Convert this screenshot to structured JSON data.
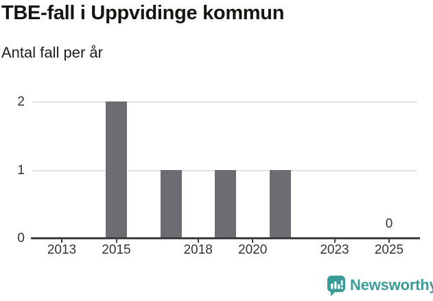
{
  "header": {
    "title": "TBE-fall i Uppvidinge kommun",
    "subtitle": "Antal fall per år"
  },
  "chart_data": {
    "type": "bar",
    "title": "TBE-fall i Uppvidinge kommun",
    "subtitle": "Antal fall per år",
    "categories": [
      2013,
      2014,
      2015,
      2016,
      2017,
      2018,
      2019,
      2020,
      2021,
      2022,
      2023,
      2024,
      2025
    ],
    "values": [
      0,
      0,
      2,
      0,
      1,
      0,
      1,
      0,
      1,
      0,
      0,
      0,
      0
    ],
    "x_tick_labels": [
      "2013",
      "2015",
      "2018",
      "2020",
      "2023",
      "2025"
    ],
    "y_ticks": [
      "0",
      "1",
      "2"
    ],
    "ylim": [
      0,
      2
    ],
    "xlabel": "",
    "ylabel": "",
    "grid": "horizontal",
    "legend": "none",
    "bar_color": "#6c6c72",
    "axis_color": "#3f3f3f",
    "gridline_color": "#e2e2e2",
    "annotations": [
      {
        "category": 2025,
        "text": "0"
      }
    ]
  },
  "footer": {
    "brand": "Newsworthy",
    "accent_color": "#3a9c98",
    "logo_icon": "newsworthy-speech-bubble-bar-chart-icon"
  }
}
